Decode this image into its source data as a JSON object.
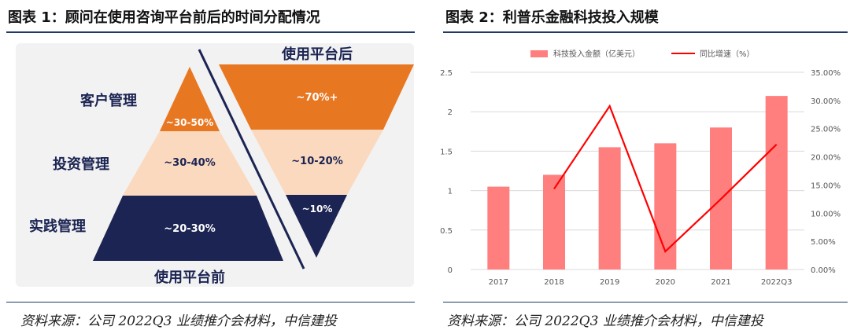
{
  "figure1": {
    "title": "图表 1：顾问在使用咨询平台前后的时间分配情况",
    "source": "资料来源：公司 2022Q3 业绩推介会材料，中信建投",
    "before_title": "使用平台前",
    "after_title": "使用平台后",
    "rows": [
      {
        "label": "客户管理",
        "before": "~30-50%",
        "after": "~70%+"
      },
      {
        "label": "投资管理",
        "before": "~30-40%",
        "after": "~10-20%"
      },
      {
        "label": "实践管理",
        "before": "~20-30%",
        "after": "~10%"
      }
    ],
    "colors": {
      "orange": "#e87722",
      "peach": "#fbd9bf",
      "navy": "#1b2452",
      "panel_bg": "#f2f2f2"
    }
  },
  "figure2": {
    "title": "图表 2：利普乐金融科技投入规模",
    "source": "资料来源：公司 2022Q3 业绩推介会材料，中信建投"
  },
  "chart_data": {
    "type": "bar",
    "title": "利普乐金融科技投入规模",
    "categories": [
      "2017",
      "2018",
      "2019",
      "2020",
      "2021",
      "2022Q3"
    ],
    "series": [
      {
        "name": "科技投入金额（亿美元）",
        "type": "bar",
        "axis": "left",
        "values": [
          1.05,
          1.2,
          1.55,
          1.6,
          1.8,
          2.2
        ],
        "color": "#ff7f7f"
      },
      {
        "name": "同比增速（%）",
        "type": "line",
        "axis": "right",
        "values": [
          null,
          0.143,
          0.29,
          0.032,
          0.125,
          0.222
        ],
        "color": "#ff0000"
      }
    ],
    "y_left": {
      "range": [
        0,
        2.5
      ],
      "ticks": [
        0,
        0.5,
        1,
        1.5,
        2,
        2.5
      ],
      "tick_labels": [
        "0",
        "0.5",
        "1",
        "1.5",
        "2",
        "2.5"
      ]
    },
    "y_right": {
      "range": [
        0,
        0.35
      ],
      "ticks": [
        0,
        0.05,
        0.1,
        0.15,
        0.2,
        0.25,
        0.3,
        0.35
      ],
      "tick_labels": [
        "0.00%",
        "5.00%",
        "10.00%",
        "15.00%",
        "20.00%",
        "25.00%",
        "30.00%",
        "35.00%"
      ]
    },
    "legend_position": "top-center",
    "grid": "horizontal"
  }
}
